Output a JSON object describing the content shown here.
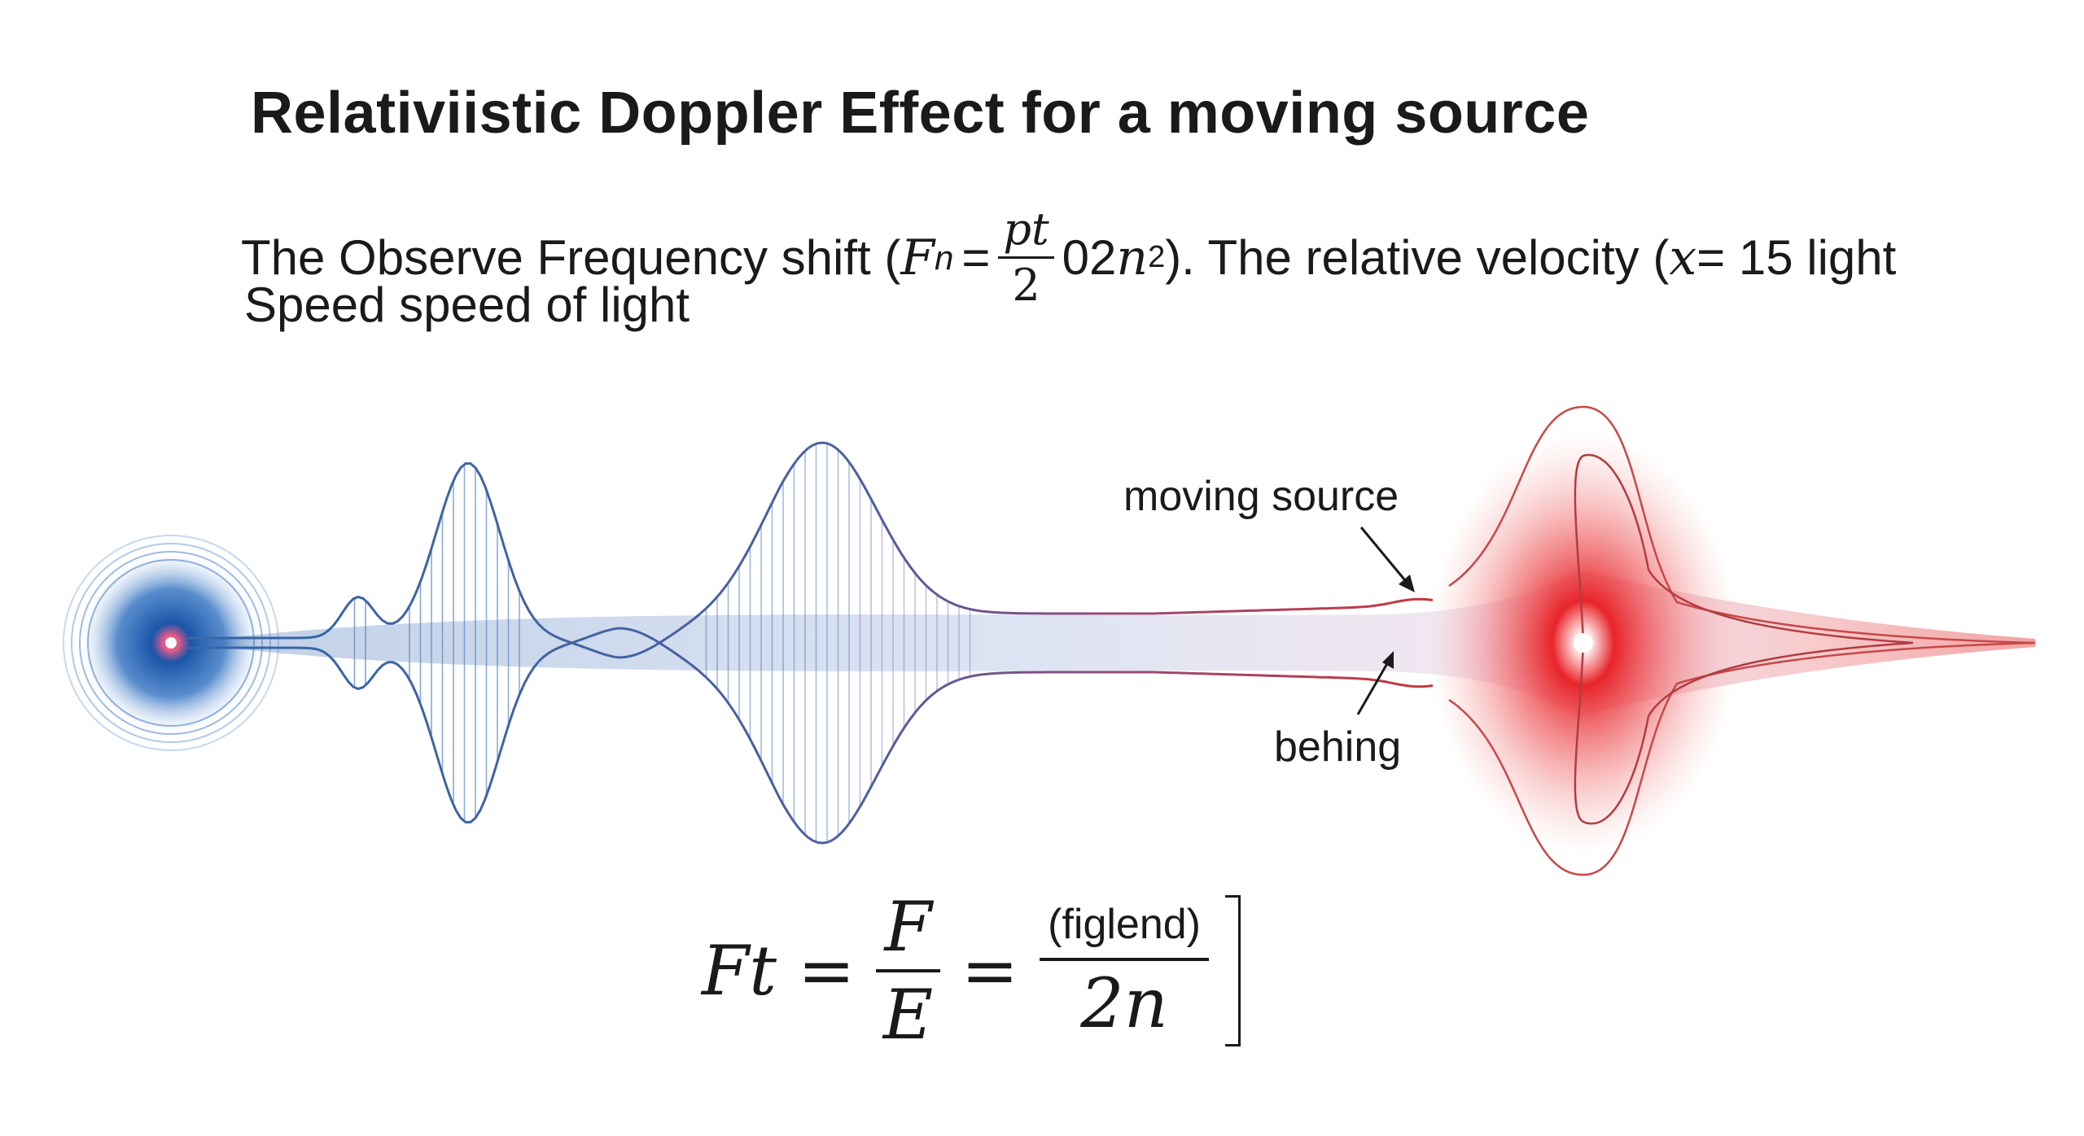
{
  "header": {
    "title": "Relativiistic Doppler Effect for a moving source",
    "subtitle_prefix": "The Observe Frequency shift (",
    "subtitle_F": "F",
    "subtitle_n": "n",
    "subtitle_eq": "=",
    "subtitle_frac_num": "pt",
    "subtitle_frac_den": "2",
    "subtitle_tail_num": "02",
    "subtitle_tail_n": "n",
    "subtitle_tail_exp": "2",
    "subtitle_mid": "). The relative velocity (",
    "subtitle_x": "x",
    "subtitle_end": " = 15 light",
    "line2": "Speed speed of light"
  },
  "diagram": {
    "label_moving_source": "moving source",
    "label_behind": "behing",
    "colors": {
      "blue": "#1f5fa8",
      "red": "#e0262b",
      "line": "#1c3f7a"
    }
  },
  "formula": {
    "lhs": "Ft",
    "eq1": "=",
    "frac1_num": "F",
    "frac1_den": "E",
    "eq2": "=",
    "frac2_num": "(figlend)",
    "frac2_den": "2n"
  }
}
